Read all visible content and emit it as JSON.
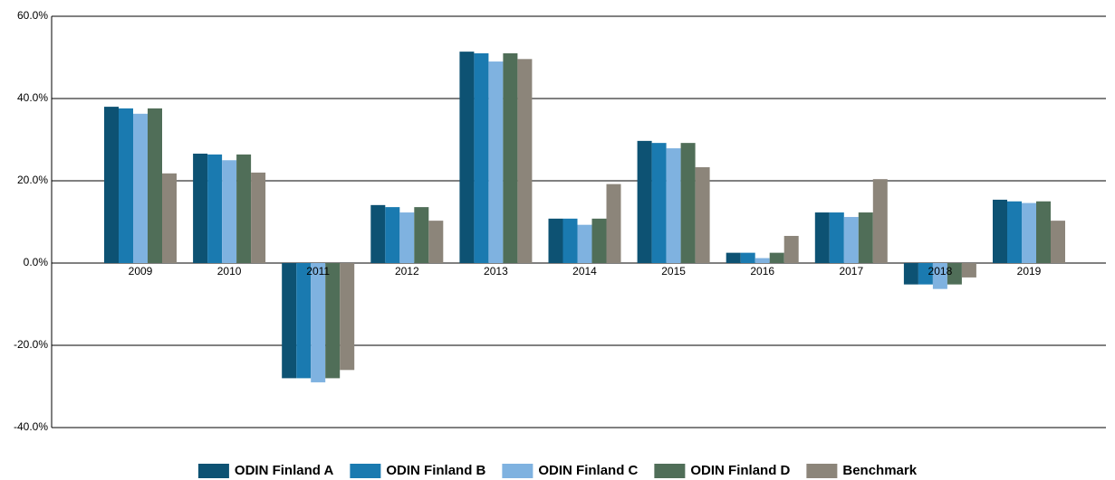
{
  "chart_data": {
    "type": "bar",
    "categories": [
      "2009",
      "2010",
      "2011",
      "2012",
      "2013",
      "2014",
      "2015",
      "2016",
      "2017",
      "2018",
      "2019"
    ],
    "series": [
      {
        "name": "ODIN Finland A",
        "color": "#0d5273",
        "values": [
          38.0,
          26.6,
          -28.0,
          14.1,
          51.4,
          10.8,
          29.7,
          2.5,
          12.3,
          -5.2,
          15.4
        ]
      },
      {
        "name": "ODIN Finland B",
        "color": "#1a7ab0",
        "values": [
          37.6,
          26.4,
          -28.0,
          13.6,
          51.0,
          10.8,
          29.2,
          2.5,
          12.3,
          -5.2,
          15.0
        ]
      },
      {
        "name": "ODIN Finland C",
        "color": "#7fb2e0",
        "values": [
          36.3,
          25.0,
          -29.0,
          12.3,
          49.0,
          9.3,
          27.9,
          1.2,
          11.2,
          -6.3,
          14.6
        ]
      },
      {
        "name": "ODIN Finland D",
        "color": "#506e58",
        "values": [
          37.6,
          26.4,
          -28.0,
          13.6,
          51.0,
          10.8,
          29.2,
          2.5,
          12.3,
          -5.2,
          15.0
        ]
      },
      {
        "name": "Benchmark",
        "color": "#8c857a",
        "values": [
          21.8,
          22.0,
          -26.0,
          10.3,
          49.6,
          19.2,
          23.3,
          6.6,
          20.4,
          -3.5,
          10.3
        ]
      }
    ],
    "ylim": [
      -40,
      60
    ],
    "yticks": [
      {
        "value": -40,
        "label": "-40.0%"
      },
      {
        "value": -20,
        "label": "-20.0%"
      },
      {
        "value": 0,
        "label": "0.0%"
      },
      {
        "value": 20,
        "label": "20.0%"
      },
      {
        "value": 40,
        "label": "40.0%"
      },
      {
        "value": 60,
        "label": "60.0%"
      }
    ],
    "grid": true,
    "legend": "bottom"
  }
}
